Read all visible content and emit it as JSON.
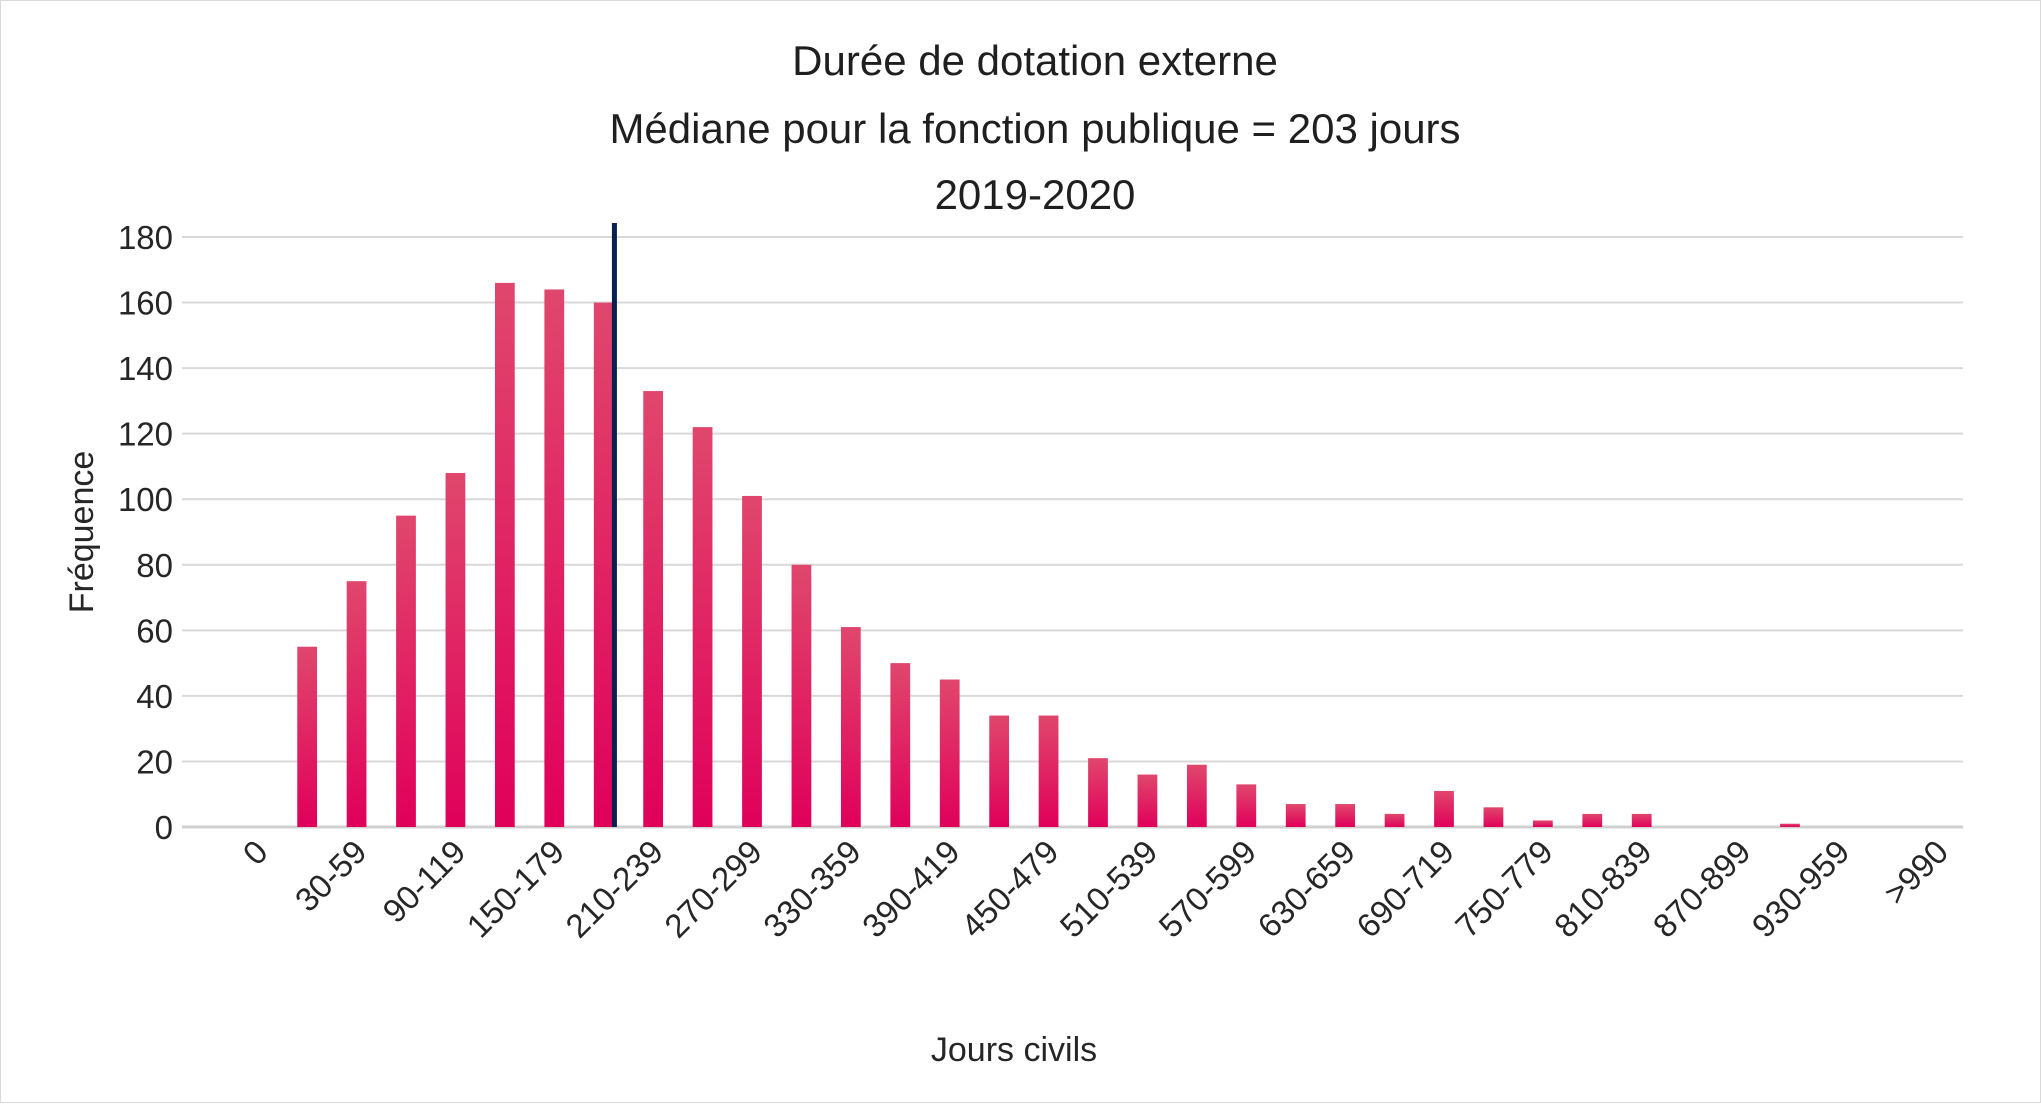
{
  "chart_data": {
    "type": "bar",
    "title": [
      "Durée de dotation externe",
      "Médiane pour la fonction publique = 203 jours",
      "2019-2020"
    ],
    "xlabel": "Jours civils",
    "ylabel": "Fréquence",
    "ylim": [
      0,
      180
    ],
    "yticks": [
      "0",
      "20",
      "40",
      "60",
      "80",
      "100",
      "120",
      "140",
      "160",
      "180"
    ],
    "grid": true,
    "categories": [
      "0",
      "",
      "30-59",
      "",
      "90-119",
      "",
      "150-179",
      "",
      "210-239",
      "",
      "270-299",
      "",
      "330-359",
      "",
      "390-419",
      "",
      "450-479",
      "",
      "510-539",
      "",
      "570-599",
      "",
      "630-659",
      "",
      "690-719",
      "",
      "750-779",
      "",
      "810-839",
      "",
      "870-899",
      "",
      "930-959",
      "",
      ">990"
    ],
    "values": [
      0,
      55,
      75,
      95,
      108,
      166,
      164,
      160,
      133,
      122,
      101,
      80,
      61,
      50,
      45,
      34,
      34,
      21,
      16,
      19,
      13,
      7,
      7,
      4,
      11,
      6,
      2,
      4,
      4,
      0,
      0,
      1,
      0,
      0,
      0
    ],
    "median_line": {
      "value": 203
    },
    "colors": {
      "bar_top": "#e0476d",
      "bar_bottom": "#e0005a",
      "median_line": "#0a2050",
      "grid": "#d9d9d9"
    }
  }
}
